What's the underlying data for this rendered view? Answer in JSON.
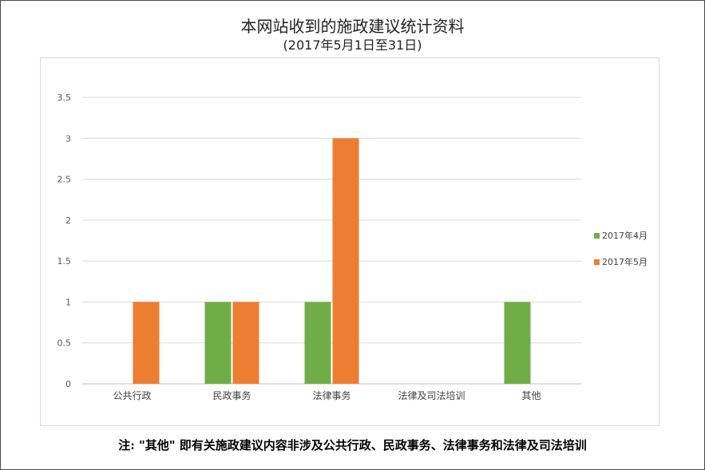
{
  "chart_data": {
    "type": "bar",
    "title": "本网站收到的施政建议统计资料",
    "subtitle": "(2017年5月1日至31日)",
    "categories": [
      "公共行政",
      "民政事务",
      "法律事务",
      "法律及司法培训",
      "其他"
    ],
    "series": [
      {
        "name": "2017年4月",
        "values": [
          0,
          1,
          1,
          0,
          1
        ],
        "color": "#70ad47"
      },
      {
        "name": "2017年5月",
        "values": [
          1,
          1,
          3,
          0,
          0
        ],
        "color": "#ed7d31"
      }
    ],
    "ylim": [
      0,
      3.5
    ],
    "yticks": [
      "0",
      "0.5",
      "1",
      "1.5",
      "2",
      "2.5",
      "3",
      "3.5"
    ],
    "grid": true,
    "legend": "right"
  },
  "note": "注: \"其他\" 即有关施政建议内容非涉及公共行政、民政事务、法律事务和法律及司法培训"
}
